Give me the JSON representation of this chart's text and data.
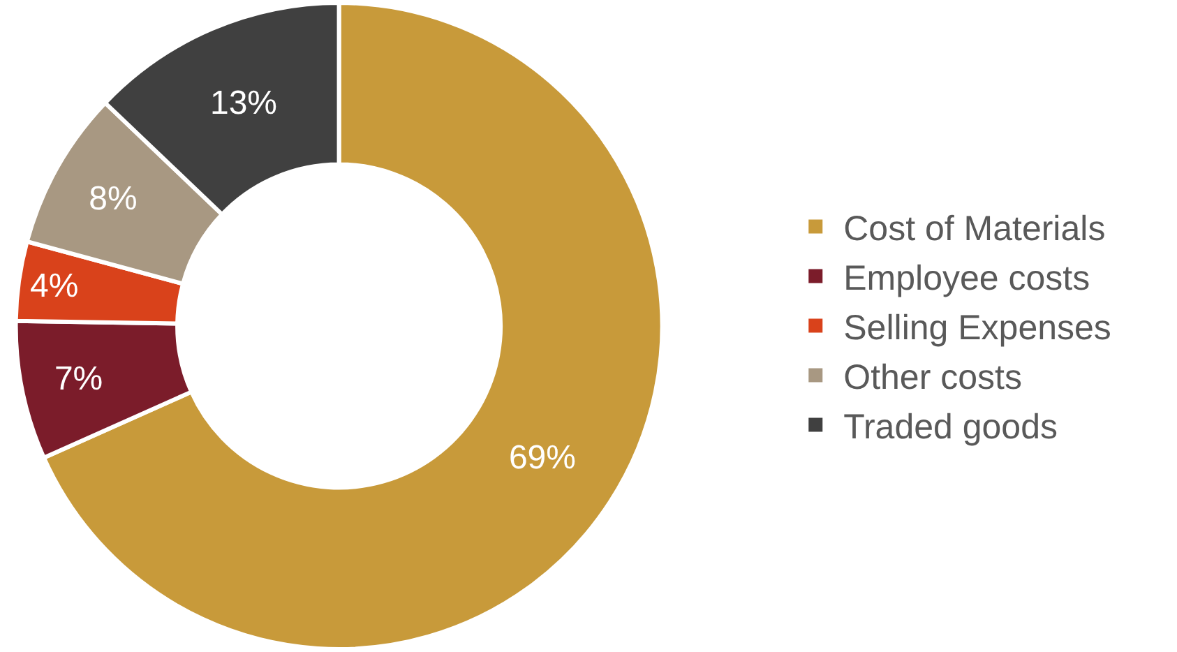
{
  "chart_data": {
    "type": "donut",
    "categories": [
      "Cost of Materials",
      "Employee costs",
      "Selling Expenses",
      "Other costs",
      "Traded goods"
    ],
    "values": [
      69,
      7,
      4,
      8,
      13
    ],
    "value_labels": [
      "69%",
      "7%",
      "4%",
      "8%",
      "13%"
    ],
    "colors": [
      "#c89a3a",
      "#7b1c2a",
      "#d9421b",
      "#a89882",
      "#404040"
    ],
    "legend": "right"
  }
}
